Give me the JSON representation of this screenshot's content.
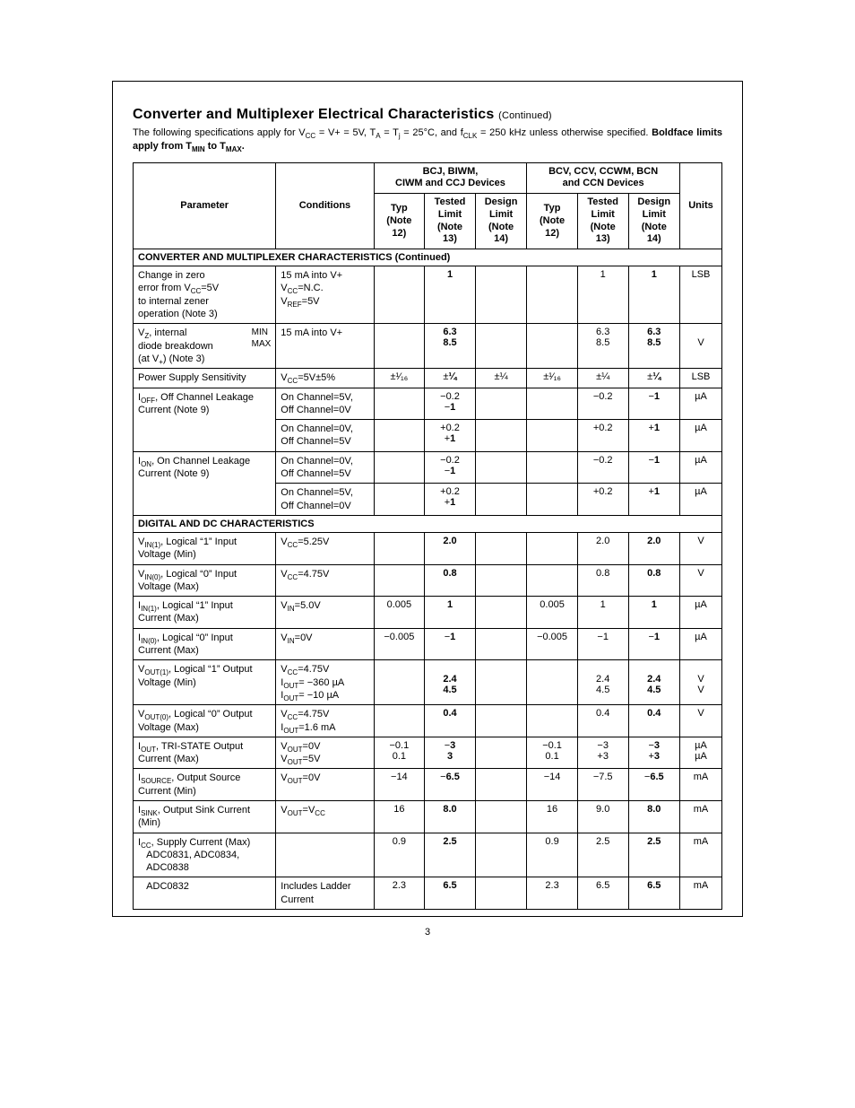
{
  "title": "Converter and Multiplexer Electrical Characteristics",
  "title_cont": "(Continued)",
  "intro_html": "The following specifications apply for V<sub>CC</sub> = V+ = 5V, T<sub>A</sub> = T<sub>j</sub> = 25°C, and f<sub>CLK</sub> = 250 kHz unless otherwise specified. <b>Boldface limits apply from T<sub>MIN</sub> to T<sub>MAX</sub>.</b>",
  "headers": {
    "parameter": "Parameter",
    "conditions": "Conditions",
    "group1": "BCJ, BIWM,<br>CIWM and CCJ Devices",
    "group2": "BCV, CCV, CCWM, BCN<br>and CCN Devices",
    "typ": "Typ<br>(Note 12)",
    "tested": "Tested<br>Limit<br>(Note 13)",
    "design": "Design<br>Limit<br>(Note 14)",
    "units": "Units"
  },
  "section1": "CONVERTER AND MULTIPLEXER CHARACTERISTICS (Continued)",
  "section2": "DIGITAL AND DC CHARACTERISTICS",
  "rows": [
    {
      "param": "Change in zero<br>error from V<sub>CC</sub>=5V<br>to internal zener<br>operation (Note 3)",
      "cond": "15 mA into V+<br>V<sub>CC</sub>=N.C.<br>V<sub>REF</sub>=5V",
      "c": [
        "",
        "<b>1</b>",
        "",
        "",
        "1",
        "<b>1</b>"
      ],
      "units": "LSB"
    },
    {
      "param": "V<sub>Z</sub>, internal<span class='minmax'>MIN<br>MAX</span><br>diode breakdown<br>(at V<sub>+</sub>) (Note 3)",
      "cond": "15 mA into V+",
      "c": [
        "",
        "<b>6.3</b><br><b>8.5</b>",
        "",
        "",
        "6.3<br>8.5",
        "<b>6.3</b><br><b>8.5</b>"
      ],
      "units": "<br>V"
    },
    {
      "param": "Power Supply Sensitivity",
      "cond": "V<sub>CC</sub>=5V±5%",
      "c": [
        "±¹⁄₁₆",
        "±<b>¼</b>",
        "±¼",
        "±¹⁄₁₆",
        "±¼",
        "±<b>¼</b>"
      ],
      "units": "LSB"
    },
    {
      "param": "I<sub>OFF</sub>, Off Channel Leakage<br>Current (Note 9)",
      "cond": "On Channel=5V,<br>Off Channel=0V",
      "c": [
        "",
        "−0.2<br>−<b>1</b>",
        "",
        "",
        "−0.2",
        "−<b>1</b>"
      ],
      "units": "µA",
      "param_rowspan": 2
    },
    {
      "param": "",
      "cond": "On Channel=0V,<br>Off Channel=5V",
      "c": [
        "",
        "+0.2<br>+<b>1</b>",
        "",
        "",
        "+0.2",
        "+<b>1</b>"
      ],
      "units": "µA",
      "skip_param": true
    },
    {
      "param": "I<sub>ON</sub>, On Channel Leakage<br>Current (Note 9)",
      "cond": "On Channel=0V,<br>Off Channel=5V",
      "c": [
        "",
        "−0.2<br>−<b>1</b>",
        "",
        "",
        "−0.2",
        "−<b>1</b>"
      ],
      "units": "µA",
      "param_rowspan": 2
    },
    {
      "param": "",
      "cond": "On Channel=5V,<br>Off Channel=0V",
      "c": [
        "",
        "+0.2<br>+<b>1</b>",
        "",
        "",
        "+0.2",
        "+<b>1</b>"
      ],
      "units": "µA",
      "skip_param": true
    }
  ],
  "rows2": [
    {
      "param": "V<sub>IN(1)</sub>, Logical “1” Input<br>Voltage (Min)",
      "cond": "V<sub>CC</sub>=5.25V",
      "c": [
        "",
        "<b>2.0</b>",
        "",
        "",
        "2.0",
        "<b>2.0</b>"
      ],
      "units": "V"
    },
    {
      "param": "V<sub>IN(0)</sub>, Logical “0” Input<br>Voltage (Max)",
      "cond": "V<sub>CC</sub>=4.75V",
      "c": [
        "",
        "<b>0.8</b>",
        "",
        "",
        "0.8",
        "<b>0.8</b>"
      ],
      "units": "V"
    },
    {
      "param": "I<sub>IN(1)</sub>, Logical “1” Input<br>Current (Max)",
      "cond": "V<sub>IN</sub>=5.0V",
      "c": [
        "0.005",
        "<b>1</b>",
        "",
        "0.005",
        "1",
        "<b>1</b>"
      ],
      "units": "µA"
    },
    {
      "param": "I<sub>IN(0)</sub>, Logical “0” Input<br>Current (Max)",
      "cond": "V<sub>IN</sub>=0V",
      "c": [
        "−0.005",
        "−<b>1</b>",
        "",
        "−0.005",
        "−1",
        "−<b>1</b>"
      ],
      "units": "µA"
    },
    {
      "param": "V<sub>OUT(1)</sub>, Logical “1” Output<br>Voltage (Min)",
      "cond": "V<sub>CC</sub>=4.75V<br>I<sub>OUT</sub>= −360 µA<br>I<sub>OUT</sub>= −10 µA",
      "c": [
        "",
        "<br><b>2.4</b><br><b>4.5</b>",
        "",
        "",
        "<br>2.4<br>4.5",
        "<br><b>2.4</b><br><b>4.5</b>"
      ],
      "units": "<br>V<br>V"
    },
    {
      "param": "V<sub>OUT(0)</sub>, Logical “0” Output<br>Voltage (Max)",
      "cond": "V<sub>CC</sub>=4.75V<br>I<sub>OUT</sub>=1.6 mA",
      "c": [
        "",
        "<b>0.4</b>",
        "",
        "",
        "0.4",
        "<b>0.4</b>"
      ],
      "units": "V"
    },
    {
      "param": "I<sub>OUT</sub>, TRI-STATE Output<br>Current (Max)",
      "cond": "V<sub>OUT</sub>=0V<br>V<sub>OUT</sub>=5V",
      "c": [
        "−0.1<br>0.1",
        "−<b>3</b><br><b>3</b>",
        "",
        "−0.1<br>0.1",
        "−3<br>+3",
        "−<b>3</b><br>+<b>3</b>"
      ],
      "units": "µA<br>µA"
    },
    {
      "param": "I<sub>SOURCE</sub>, Output Source<br>Current (Min)",
      "cond": "V<sub>OUT</sub>=0V",
      "c": [
        "−14",
        "−<b>6.5</b>",
        "",
        "−14",
        "−7.5",
        "−<b>6.5</b>"
      ],
      "units": "mA"
    },
    {
      "param": "I<sub>SINK</sub>, Output Sink Current (Min)",
      "cond": "V<sub>OUT</sub>=V<sub>CC</sub>",
      "c": [
        "16",
        "<b>8.0</b>",
        "",
        "16",
        "9.0",
        "<b>8.0</b>"
      ],
      "units": "mA"
    },
    {
      "param": "I<sub>CC</sub>, Supply Current (Max)<br>&nbsp;&nbsp;&nbsp;ADC0831, ADC0834,<br>&nbsp;&nbsp;&nbsp;ADC0838",
      "cond": "",
      "c": [
        "0.9",
        "<b>2.5</b>",
        "",
        "0.9",
        "2.5",
        "<b>2.5</b>"
      ],
      "units": "mA"
    },
    {
      "param": "&nbsp;&nbsp;&nbsp;ADC0832",
      "cond": "Includes Ladder<br>Current",
      "c": [
        "2.3",
        "<b>6.5</b>",
        "",
        "2.3",
        "6.5",
        "<b>6.5</b>"
      ],
      "units": "mA"
    }
  ],
  "page_number": "3",
  "colors": {
    "text": "#000000",
    "bg": "#ffffff",
    "border": "#000000"
  }
}
